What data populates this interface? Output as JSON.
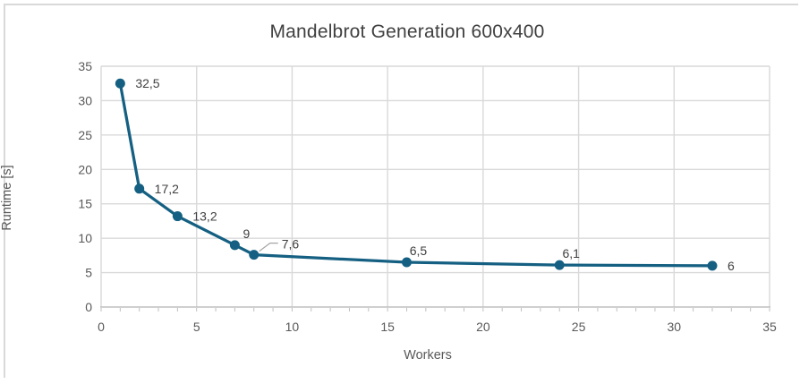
{
  "chart_data": {
    "type": "line",
    "title": "Mandelbrot Generation 600x400",
    "xlabel": "Workers",
    "ylabel": "Runtime [s]",
    "x": [
      1,
      2,
      4,
      7,
      8,
      16,
      24,
      32
    ],
    "y": [
      32.5,
      17.2,
      13.2,
      9,
      7.6,
      6.5,
      6.1,
      6
    ],
    "point_labels": [
      "32,5",
      "17,2",
      "13,2",
      "9",
      "7,6",
      "6,5",
      "6,1",
      "6"
    ],
    "label_positions": [
      "right",
      "right",
      "right",
      "above",
      "leader",
      "above",
      "above",
      "right"
    ],
    "xlim": [
      0,
      35
    ],
    "ylim": [
      0,
      35
    ],
    "x_ticks": [
      0,
      5,
      10,
      15,
      20,
      25,
      30,
      35
    ],
    "y_ticks": [
      0,
      5,
      10,
      15,
      20,
      25,
      30,
      35
    ],
    "minor_tick_unit": 1,
    "grid": true,
    "legend": "none",
    "colors": {
      "series": "#156082",
      "gridline": "#D9D9D9",
      "axis_line": "#BFBFBF",
      "tick_mark": "#BFBFBF",
      "tick_label": "#595959",
      "title": "#404040",
      "data_label": "#404040",
      "leader_line": "#A6A6A6",
      "frame_border": "#D9D9D9",
      "background": "#FFFFFF"
    }
  }
}
